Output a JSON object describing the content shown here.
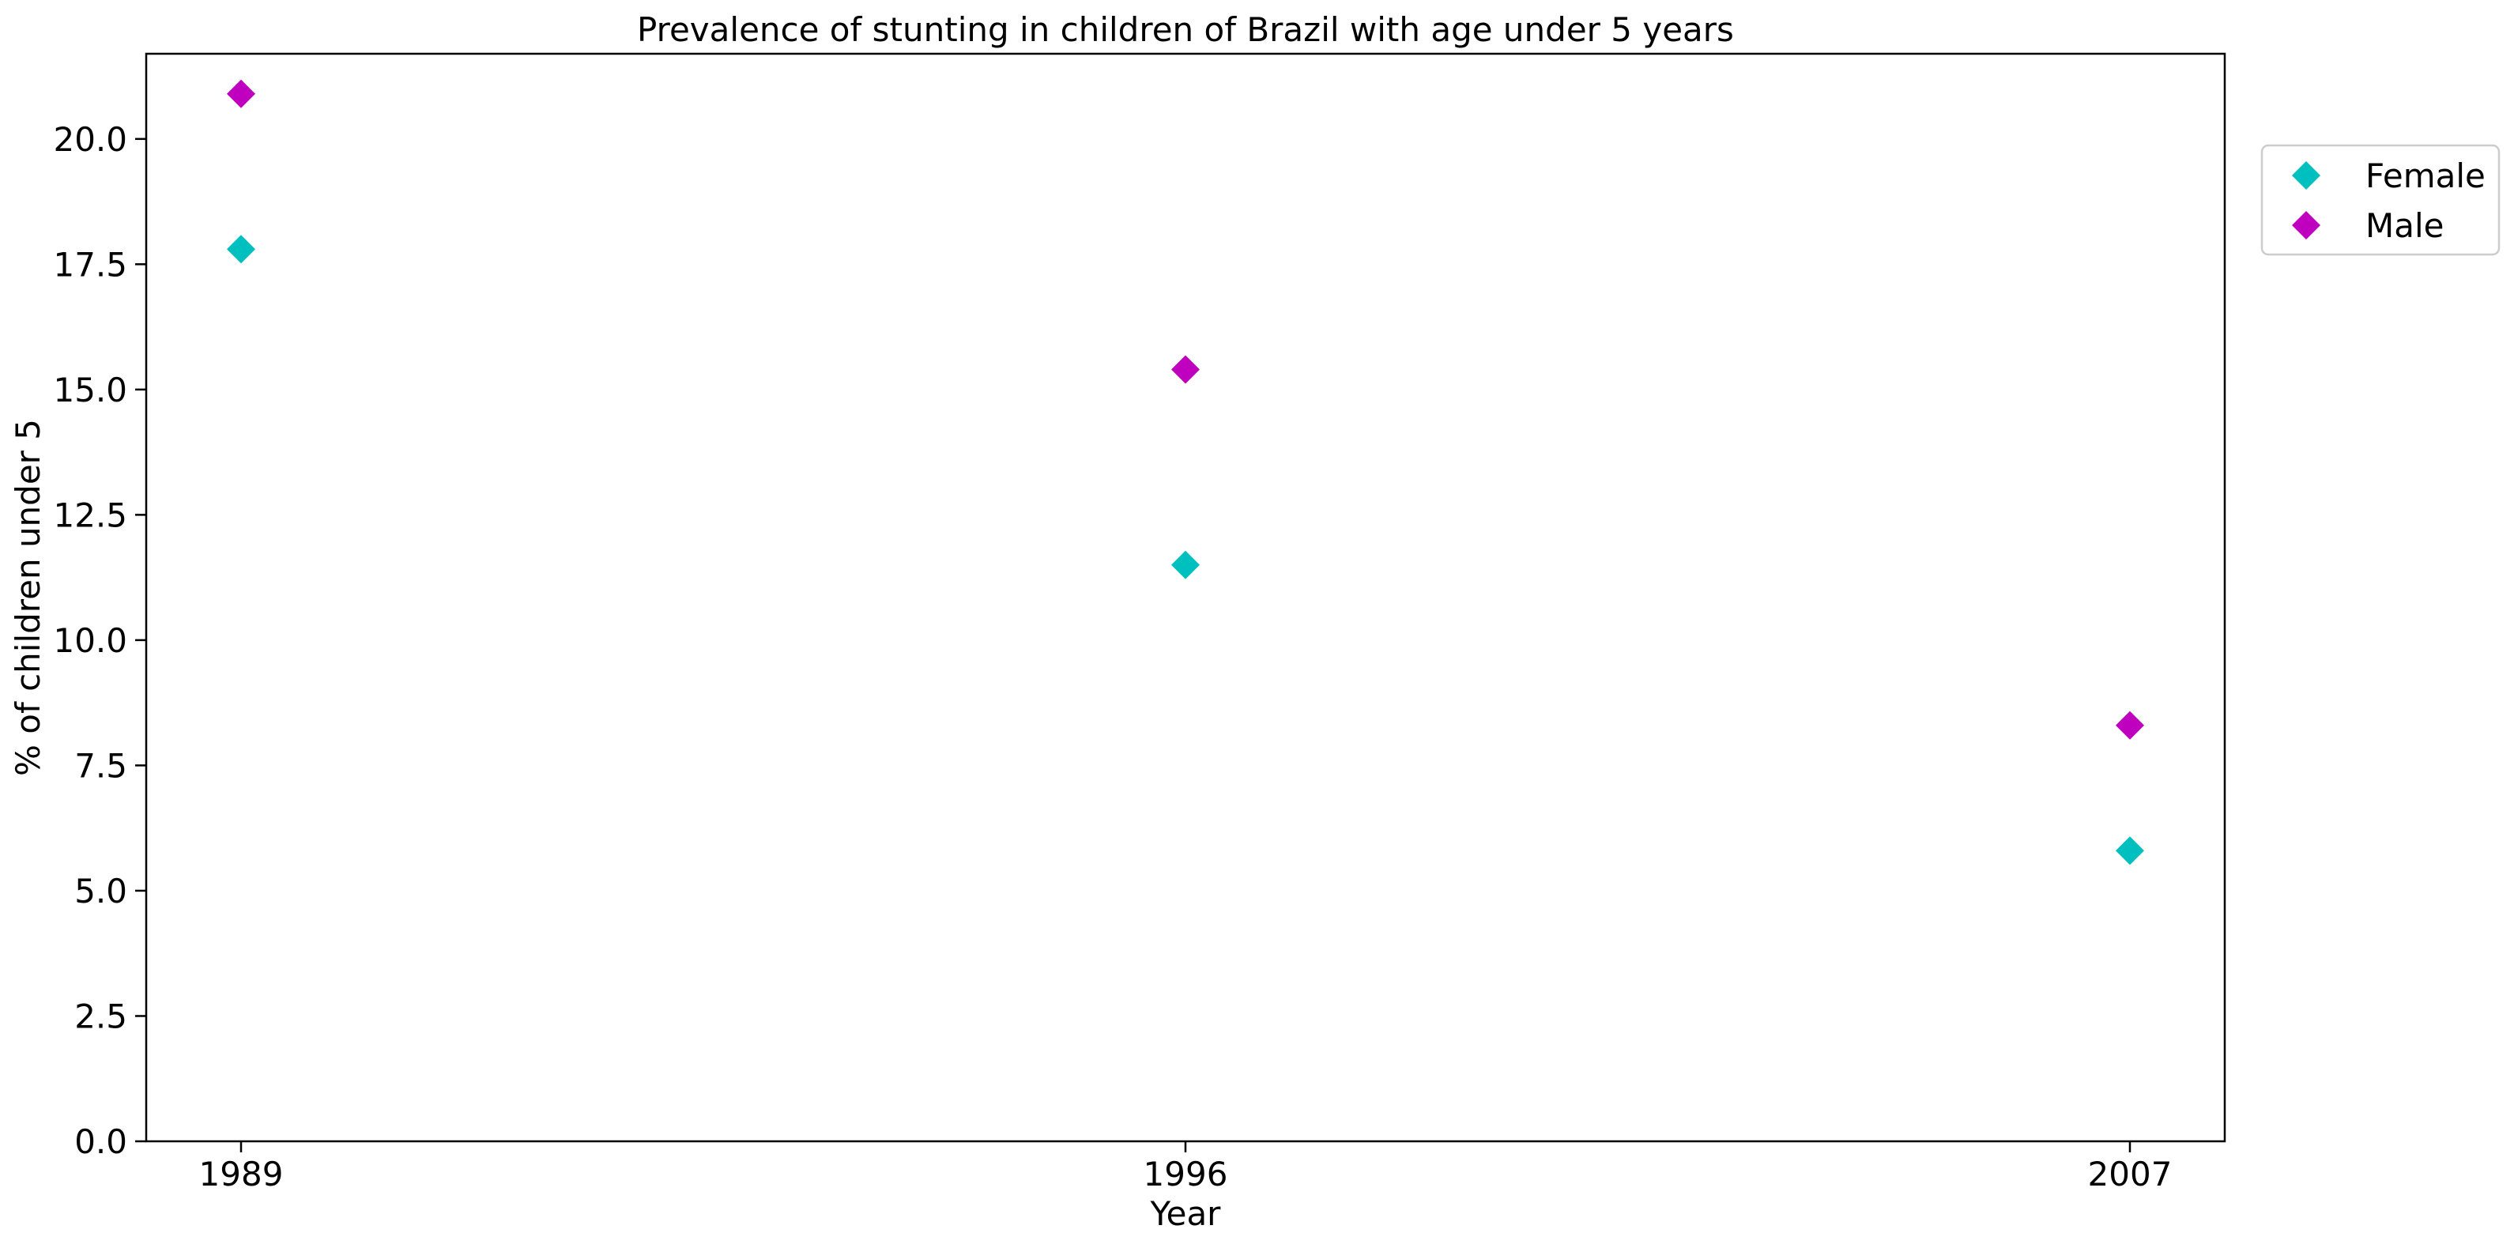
{
  "colors": {
    "female": "#00BFBF",
    "male": "#BF00BF"
  },
  "chart_data": {
    "type": "scatter",
    "title": "Prevalence of stunting in children of Brazil with age under 5 years",
    "xlabel": "Year",
    "ylabel": "% of children under 5",
    "categories": [
      "1989",
      "1996",
      "2007"
    ],
    "ylim": [
      0,
      21.7
    ],
    "yticks": [
      "0.0",
      "2.5",
      "5.0",
      "7.5",
      "10.0",
      "12.5",
      "15.0",
      "17.5",
      "20.0"
    ],
    "grid": false,
    "legend_position": "outside-top-right",
    "marker": "diamond",
    "series": [
      {
        "name": "Female",
        "color": "#00BFBF",
        "values": [
          17.8,
          11.5,
          5.8
        ]
      },
      {
        "name": "Male",
        "color": "#BF00BF",
        "values": [
          20.9,
          15.4,
          8.3
        ]
      }
    ]
  }
}
